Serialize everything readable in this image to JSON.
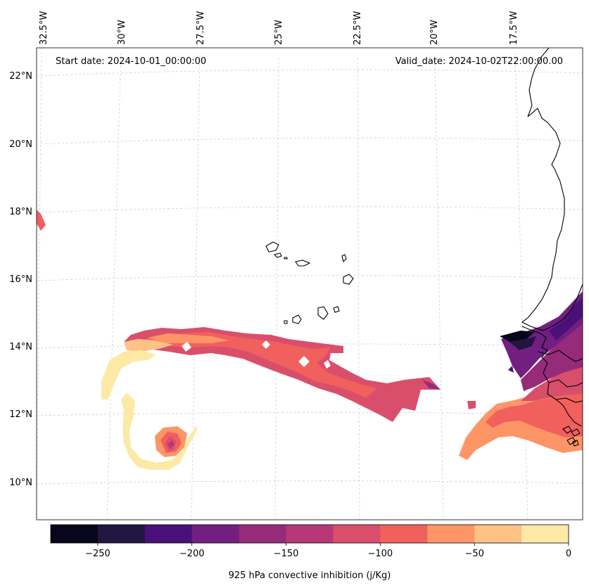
{
  "map": {
    "start_date_label": "Start date: 2024-10-01_00:00:00",
    "valid_date_label": "Valid_date: 2024-10-02T22:00:00.00",
    "lon_labels": [
      "32.5°W",
      "30°W",
      "27.5°W",
      "25°W",
      "22.5°W",
      "20°W",
      "17.5°W"
    ],
    "lat_labels": [
      "22°N",
      "20°N",
      "18°N",
      "16°N",
      "14°N",
      "12°N",
      "10°N"
    ]
  },
  "colorbar": {
    "label": "925 hPa convective inhibition (j/Kg)",
    "tick_labels": [
      "−250",
      "−200",
      "−150",
      "−100",
      "−50",
      "0"
    ],
    "colors": [
      "#07061c",
      "#211640",
      "#4a1079",
      "#721f81",
      "#962b7a",
      "#b73779",
      "#d94f6b",
      "#f1605d",
      "#fd9567",
      "#fec287",
      "#fde9a6"
    ],
    "coastline_color": "#000000"
  }
}
